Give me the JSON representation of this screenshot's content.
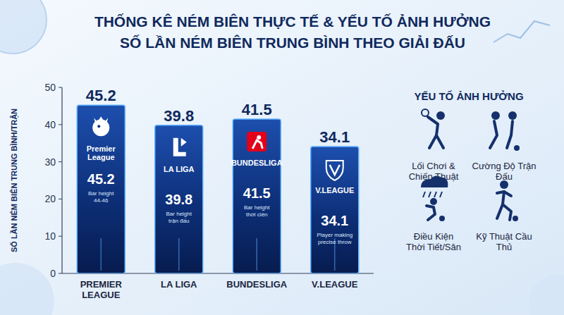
{
  "chart_data": {
    "type": "bar",
    "title": "THỐNG KÊ NÉM BIÊN THỰC TẾ & YẾU TỐ ẢNH HƯỞNG",
    "subtitle": "SỐ LẦN NÉM BIÊN TRUNG BÌNH THEO GIẢI ĐẤU",
    "y_label": "SỐ LẦN NÉM BIÊN TRUNG BÌNH/TRẬN",
    "categories": [
      "PREMIER LEAGUE",
      "LA LIGA",
      "BUNDESLIGA",
      "V.LEAGUE"
    ],
    "values": [
      45.2,
      39.8,
      41.5,
      34.1
    ],
    "color": "#0d2f78",
    "ylim": [
      0,
      50
    ],
    "yticks": [
      0,
      10,
      20,
      30,
      40,
      50
    ],
    "grid": false,
    "data_labels": true,
    "bar_logo_texts": [
      "Premier League",
      "LA LIGA",
      "BUNDESLIGA",
      "V.LEAGUE"
    ],
    "bar_notes": [
      "Bar height 44-46",
      "Bar height trận đấu",
      "Bar height thời cién",
      "Player making precise throw"
    ]
  },
  "factors": {
    "title": "YẾU TỐ ẢNH HƯỞNG",
    "items": [
      "Lối Chơi & Chiến Thuật",
      "Cường Độ Trận Đấu",
      "Điều Kiện Thời Tiết/Sân",
      "Kỹ Thuật Cầu Thủ"
    ]
  }
}
